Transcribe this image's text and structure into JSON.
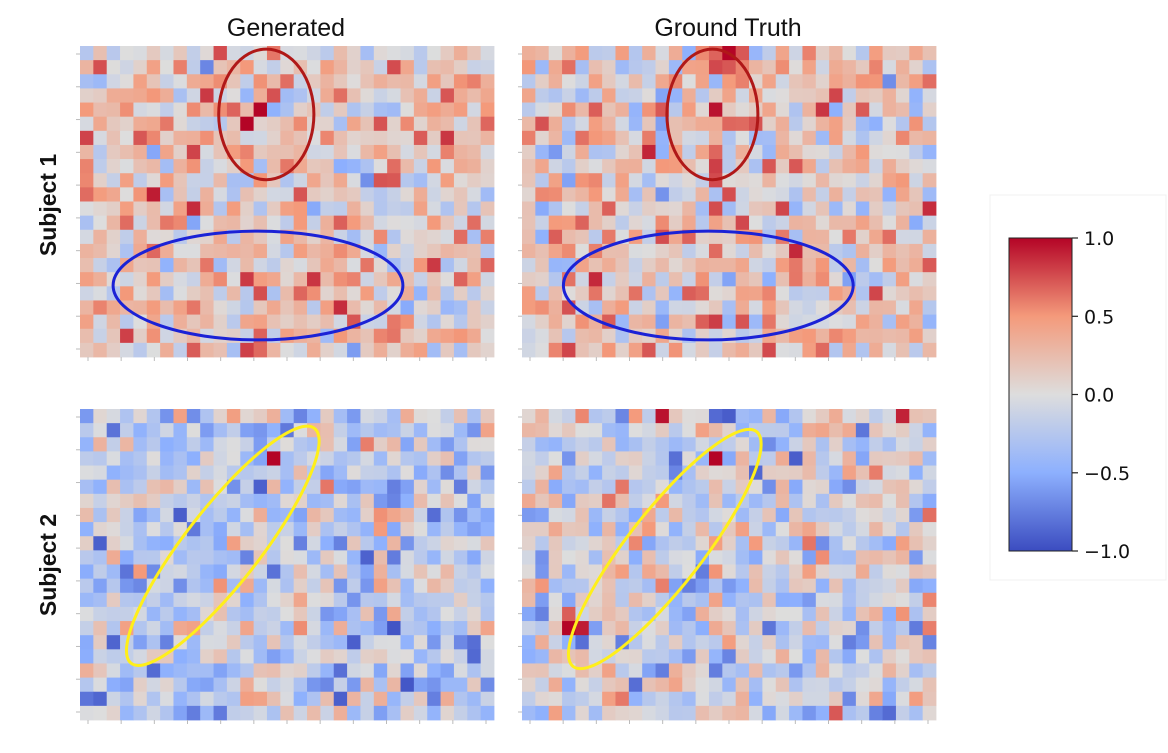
{
  "chart_data": {
    "type": "heatmap",
    "columns": [
      "Generated",
      "Ground Truth"
    ],
    "rows": [
      "Subject 1",
      "Subject 2"
    ],
    "grid": {
      "n_rows": 22,
      "n_cols": 31
    },
    "value_range": [
      -1.0,
      1.0
    ],
    "colormap": "coolwarm",
    "colormap_stops": [
      "#3b4cc0",
      "#8db0fe",
      "#dddddd",
      "#f49a7b",
      "#b40426"
    ],
    "colorbar": {
      "ticks": [
        1.0,
        0.5,
        0.0,
        -0.5,
        -1.0
      ],
      "tick_labels": [
        "1.0",
        "0.5",
        "0.0",
        "−0.5",
        "−1.0"
      ]
    },
    "panels": [
      {
        "column": "Generated",
        "row": "Subject 1",
        "bias": 0.14,
        "seed": 11,
        "hotspots": [
          {
            "r": 4,
            "c": 13,
            "v": 1.0
          },
          {
            "r": 0,
            "c": 14,
            "v": 0.62
          },
          {
            "r": 16,
            "c": 12,
            "v": 0.82
          },
          {
            "r": 21,
            "c": 12,
            "v": 0.8
          },
          {
            "r": 20,
            "c": 3,
            "v": 0.8
          },
          {
            "r": 15,
            "c": 9,
            "v": 0.62
          },
          {
            "r": 18,
            "c": 8,
            "v": 0.62
          }
        ],
        "annotation": {
          "shape": "ellipse",
          "color": "#b01818",
          "cx": 0.45,
          "cy": 0.22,
          "rx": 0.115,
          "ry": 0.21,
          "angle": 0
        }
      },
      {
        "column": "Generated",
        "row": "Subject 1 region",
        "bias": 0,
        "seed": 0,
        "hotspots": [],
        "annotation": {
          "shape": "ellipse",
          "color": "#1b22d6",
          "cx": 0.43,
          "cy": 0.77,
          "rx": 0.35,
          "ry": 0.175,
          "angle": 0
        }
      },
      {
        "column": "Ground Truth",
        "row": "Subject 1",
        "bias": 0.14,
        "seed": 29,
        "hotspots": [
          {
            "r": 0,
            "c": 15,
            "v": 1.0
          },
          {
            "r": 4,
            "c": 14,
            "v": 0.95
          },
          {
            "r": 13,
            "c": 2,
            "v": 0.7
          },
          {
            "r": 14,
            "c": 20,
            "v": 0.88
          },
          {
            "r": 21,
            "c": 3,
            "v": 0.78
          },
          {
            "r": 17,
            "c": 12,
            "v": 0.7
          },
          {
            "r": 19,
            "c": 18,
            "v": 0.62
          }
        ],
        "annotation": {
          "shape": "ellipse",
          "color": "#b01818",
          "cx": 0.46,
          "cy": 0.22,
          "rx": 0.11,
          "ry": 0.21,
          "angle": 0
        }
      },
      {
        "column": "Ground Truth",
        "row": "Subject 1 region",
        "bias": 0,
        "seed": 0,
        "hotspots": [],
        "annotation": {
          "shape": "ellipse",
          "color": "#1b22d6",
          "cx": 0.45,
          "cy": 0.77,
          "rx": 0.35,
          "ry": 0.175,
          "angle": 0
        }
      },
      {
        "column": "Generated",
        "row": "Subject 2",
        "bias": -0.18,
        "seed": 47,
        "hotspots": [
          {
            "r": 3,
            "c": 14,
            "v": 1.0
          },
          {
            "r": 5,
            "c": 18,
            "v": 0.62
          },
          {
            "r": 15,
            "c": 3,
            "v": 0.45
          }
        ],
        "annotation": {
          "shape": "ellipse",
          "color": "#ffef1a",
          "cx": 0.345,
          "cy": 0.44,
          "rx": 0.36,
          "ry": 0.12,
          "angle": -52
        }
      },
      {
        "column": "Ground Truth",
        "row": "Subject 2",
        "bias": -0.08,
        "seed": 83,
        "hotspots": [
          {
            "r": 3,
            "c": 14,
            "v": 1.0
          },
          {
            "r": 0,
            "c": 10,
            "v": 0.95
          },
          {
            "r": 0,
            "c": 28,
            "v": 0.9
          },
          {
            "r": 15,
            "c": 3,
            "v": 1.0
          },
          {
            "r": 15,
            "c": 4,
            "v": 0.92
          },
          {
            "r": 14,
            "c": 3,
            "v": 0.7
          },
          {
            "r": 21,
            "c": 23,
            "v": 0.72
          }
        ],
        "annotation": {
          "shape": "ellipse",
          "color": "#ffef1a",
          "cx": 0.345,
          "cy": 0.45,
          "rx": 0.36,
          "ry": 0.12,
          "angle": -52
        }
      }
    ]
  }
}
